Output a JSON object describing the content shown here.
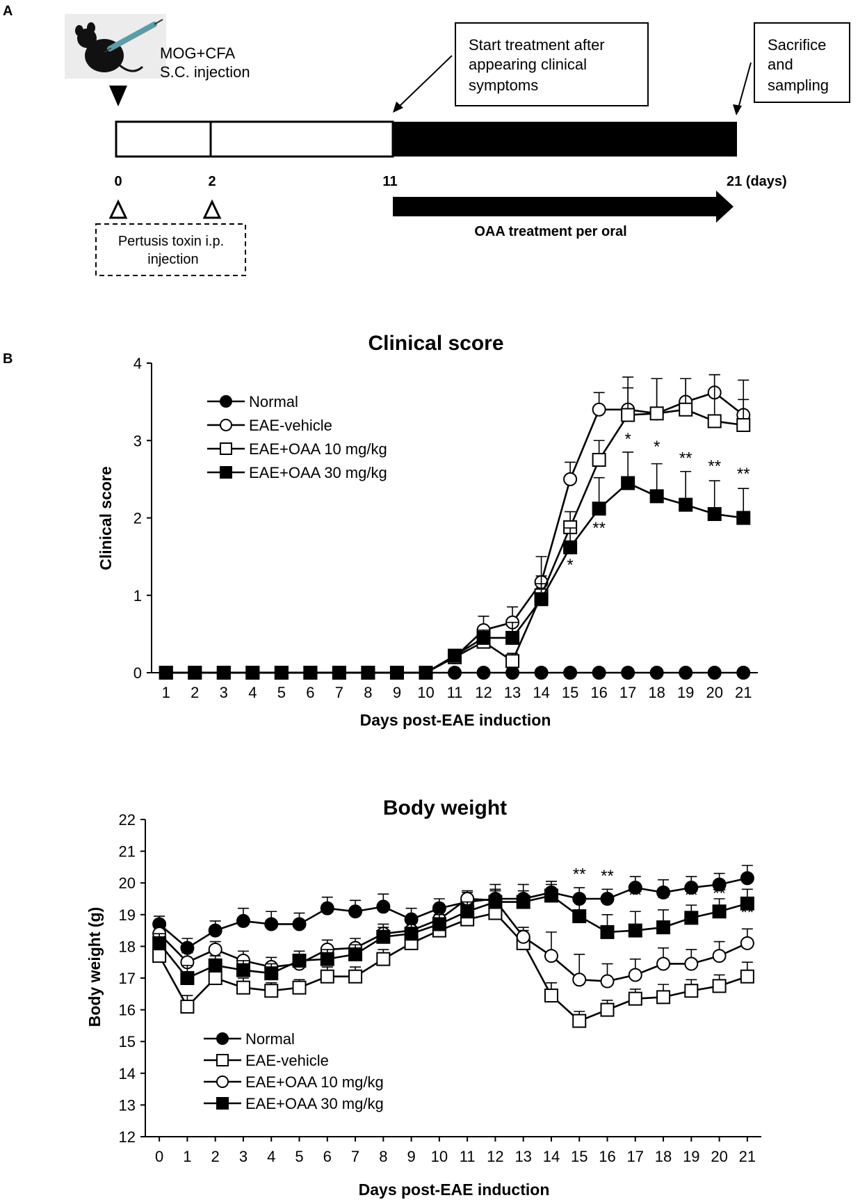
{
  "panel_a": {
    "label": "A",
    "injection_text": [
      "MOG+CFA",
      "S.C. injection"
    ],
    "treatment_box": [
      "Start treatment after",
      "appearing clinical",
      "symptoms"
    ],
    "sacrifice_box": [
      "Sacrifice",
      "and",
      "sampling"
    ],
    "day_labels": [
      "0",
      "2",
      "11",
      "21 (days)"
    ],
    "pertussis_text": [
      "Pertusis toxin i.p.",
      "injection"
    ],
    "oaa_text": "OAA treatment per oral",
    "mouse_icon": "mouse-syringe-icon"
  },
  "chart_data": [
    {
      "type": "line",
      "panel_label": "B",
      "title": "Clinical score",
      "xlabel": "Days post-EAE induction",
      "ylabel": "Clinical score",
      "x": [
        1,
        2,
        3,
        4,
        5,
        6,
        7,
        8,
        9,
        10,
        11,
        12,
        13,
        14,
        15,
        16,
        17,
        18,
        19,
        20,
        21
      ],
      "xlim": [
        0.5,
        21.5
      ],
      "ylim": [
        0,
        4
      ],
      "yticks": [
        0,
        1,
        2,
        3,
        4
      ],
      "legend_position": "top-left",
      "series": [
        {
          "name": "Normal",
          "marker": "filled-circle",
          "values": [
            0,
            0,
            0,
            0,
            0,
            0,
            0,
            0,
            0,
            0,
            0,
            0,
            0,
            0,
            0,
            0,
            0,
            0,
            0,
            0,
            0
          ],
          "errors": [
            0,
            0,
            0,
            0,
            0,
            0,
            0,
            0,
            0,
            0,
            0,
            0,
            0,
            0,
            0,
            0,
            0,
            0,
            0,
            0,
            0
          ]
        },
        {
          "name": "EAE-vehicle",
          "marker": "open-circle",
          "values": [
            0,
            0,
            0,
            0,
            0,
            0,
            0,
            0,
            0,
            0,
            0.2,
            0.55,
            0.65,
            1.17,
            2.5,
            3.4,
            3.4,
            3.35,
            3.5,
            3.62,
            3.33
          ],
          "errors": [
            0,
            0,
            0,
            0,
            0,
            0,
            0,
            0,
            0,
            0,
            0.05,
            0.18,
            0.2,
            0.33,
            0.22,
            0.22,
            0.42,
            0.45,
            0.3,
            0.23,
            0.2
          ]
        },
        {
          "name": "EAE+OAA 10 mg/kg",
          "marker": "open-square",
          "values": [
            0,
            0,
            0,
            0,
            0,
            0,
            0,
            0,
            0,
            0,
            0.2,
            0.4,
            0.15,
            1.0,
            1.88,
            2.75,
            3.33,
            3.35,
            3.4,
            3.25,
            3.2
          ],
          "errors": [
            0,
            0,
            0,
            0,
            0,
            0,
            0,
            0,
            0,
            0,
            0.05,
            0.1,
            0.1,
            0.25,
            0.2,
            0.25,
            0.35,
            0.45,
            0.4,
            0.6,
            0.58
          ]
        },
        {
          "name": "EAE+OAA 30 mg/kg",
          "marker": "filled-square",
          "values": [
            0,
            0,
            0,
            0,
            0,
            0,
            0,
            0,
            0,
            0,
            0.22,
            0.45,
            0.45,
            0.95,
            1.62,
            2.12,
            2.45,
            2.28,
            2.17,
            2.05,
            2.0
          ],
          "errors": [
            0,
            0,
            0,
            0,
            0,
            0,
            0,
            0,
            0,
            0,
            0.05,
            0.1,
            0.2,
            0.2,
            0.25,
            0.4,
            0.4,
            0.42,
            0.43,
            0.43,
            0.38
          ]
        }
      ],
      "annotations": [
        {
          "x": 15,
          "y": 1.32,
          "text": "*"
        },
        {
          "x": 16,
          "y": 1.8,
          "text": "**"
        },
        {
          "x": 17,
          "y": 2.95,
          "text": "*"
        },
        {
          "x": 18,
          "y": 2.85,
          "text": "*"
        },
        {
          "x": 19,
          "y": 2.7,
          "text": "**"
        },
        {
          "x": 20,
          "y": 2.6,
          "text": "**"
        },
        {
          "x": 21,
          "y": 2.5,
          "text": "**"
        }
      ]
    },
    {
      "type": "line",
      "title": "Body weight",
      "xlabel": "Days post-EAE induction",
      "ylabel": "Body weight (g)",
      "x": [
        0,
        1,
        2,
        3,
        4,
        5,
        6,
        7,
        8,
        9,
        10,
        11,
        12,
        13,
        14,
        15,
        16,
        17,
        18,
        19,
        20,
        21
      ],
      "xlim": [
        -0.5,
        21.5
      ],
      "ylim": [
        12,
        22
      ],
      "yticks": [
        12,
        13,
        14,
        15,
        16,
        17,
        18,
        19,
        20,
        21,
        22
      ],
      "legend_position": "bottom-left",
      "series": [
        {
          "name": "Normal",
          "marker": "filled-circle",
          "values": [
            18.7,
            17.95,
            18.5,
            18.8,
            18.7,
            18.7,
            19.2,
            19.1,
            19.25,
            18.85,
            19.2,
            19.4,
            19.5,
            19.5,
            19.7,
            19.5,
            19.5,
            19.85,
            19.7,
            19.85,
            19.95,
            20.15
          ],
          "errors": [
            0.25,
            0.3,
            0.3,
            0.4,
            0.4,
            0.35,
            0.35,
            0.35,
            0.4,
            0.35,
            0.3,
            0.3,
            0.45,
            0.45,
            0.35,
            0.35,
            0.3,
            0.35,
            0.4,
            0.35,
            0.35,
            0.4
          ]
        },
        {
          "name": "EAE-vehicle",
          "marker": "open-square",
          "values": [
            17.7,
            16.1,
            17.0,
            16.7,
            16.6,
            16.7,
            17.05,
            17.05,
            17.6,
            18.1,
            18.5,
            18.85,
            19.05,
            18.1,
            16.45,
            15.65,
            16.0,
            16.35,
            16.4,
            16.6,
            16.75,
            17.05
          ],
          "errors": [
            0.3,
            0.35,
            0.3,
            0.3,
            0.25,
            0.25,
            0.3,
            0.3,
            0.3,
            0.3,
            0.3,
            0.3,
            0.35,
            0.4,
            0.4,
            0.3,
            0.3,
            0.3,
            0.4,
            0.35,
            0.35,
            0.45
          ]
        },
        {
          "name": "EAE+OAA 10 mg/kg",
          "marker": "open-circle",
          "values": [
            18.4,
            17.5,
            17.9,
            17.55,
            17.35,
            17.45,
            17.9,
            17.95,
            18.4,
            18.5,
            18.85,
            19.5,
            19.45,
            18.3,
            17.7,
            16.95,
            16.9,
            17.1,
            17.45,
            17.45,
            17.7,
            18.1
          ],
          "errors": [
            0.3,
            0.3,
            0.25,
            0.3,
            0.3,
            0.3,
            0.3,
            0.3,
            0.3,
            0.3,
            0.3,
            0.25,
            0.35,
            0.3,
            0.75,
            0.8,
            0.55,
            0.5,
            0.5,
            0.45,
            0.45,
            0.45
          ]
        },
        {
          "name": "EAE+OAA 30 mg/kg",
          "marker": "filled-square",
          "values": [
            18.1,
            17.0,
            17.4,
            17.25,
            17.15,
            17.55,
            17.6,
            17.75,
            18.3,
            18.4,
            18.7,
            19.1,
            19.4,
            19.4,
            19.6,
            18.95,
            18.45,
            18.5,
            18.6,
            18.9,
            19.1,
            19.35
          ],
          "errors": [
            0.3,
            0.4,
            0.3,
            0.3,
            0.3,
            0.3,
            0.3,
            0.3,
            0.3,
            0.35,
            0.3,
            0.3,
            0.35,
            0.35,
            0.35,
            0.45,
            0.55,
            0.6,
            0.55,
            0.4,
            0.4,
            0.45
          ]
        }
      ],
      "annotations": [
        {
          "x": 15,
          "y": 20.1,
          "text": "**"
        },
        {
          "x": 16,
          "y": 20.05,
          "text": "**"
        },
        {
          "x": 17,
          "y": 19.45,
          "text": "**"
        },
        {
          "x": 18,
          "y": 19.35,
          "text": "**"
        },
        {
          "x": 19,
          "y": 19.45,
          "text": "**"
        },
        {
          "x": 20,
          "y": 19.5,
          "text": "**"
        },
        {
          "x": 21,
          "y": 18.9,
          "text": "**"
        }
      ]
    }
  ]
}
